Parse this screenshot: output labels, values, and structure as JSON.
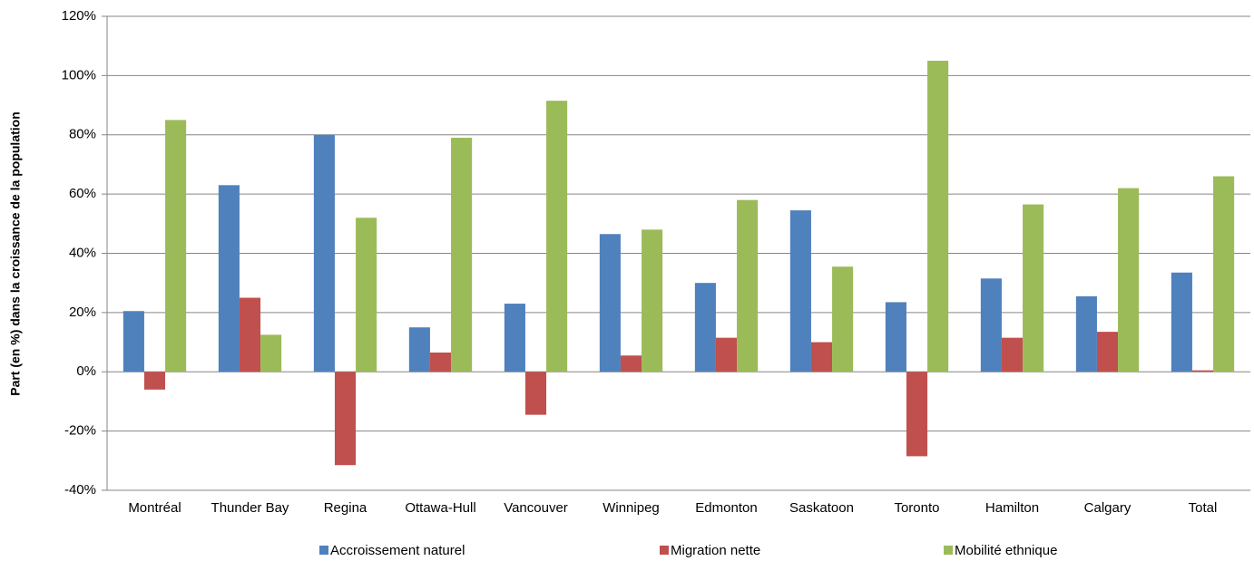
{
  "chart_data": {
    "type": "bar",
    "y_label": "Part (en %) dans la croissance de la population",
    "categories": [
      "Montréal",
      "Thunder Bay",
      "Regina",
      "Ottawa-Hull",
      "Vancouver",
      "Winnipeg",
      "Edmonton",
      "Saskatoon",
      "Toronto",
      "Hamilton",
      "Calgary",
      "Total"
    ],
    "series": [
      {
        "name": "Accroissement naturel",
        "color": "#4f81bd",
        "values": [
          20.5,
          63,
          80,
          15,
          23,
          46.5,
          30,
          54.5,
          23.5,
          31.5,
          25.5,
          33.5
        ]
      },
      {
        "name": "Migration nette",
        "color": "#c0504d",
        "values": [
          -6,
          25,
          -31.5,
          6.5,
          -14.5,
          5.5,
          11.5,
          10,
          -28.5,
          11.5,
          13.5,
          0.5
        ]
      },
      {
        "name": "Mobilité ethnique",
        "color": "#9bbb59",
        "values": [
          85,
          12.5,
          52,
          79,
          91.5,
          48,
          58,
          35.5,
          105,
          56.5,
          62,
          66
        ]
      }
    ],
    "ylim": [
      -40,
      120
    ],
    "yticks": [
      {
        "value": -40,
        "label": "-40%"
      },
      {
        "value": -20,
        "label": "-20%"
      },
      {
        "value": 0,
        "label": "0%"
      },
      {
        "value": 20,
        "label": "20%"
      },
      {
        "value": 40,
        "label": "40%"
      },
      {
        "value": 60,
        "label": "60%"
      },
      {
        "value": 80,
        "label": "80%"
      },
      {
        "value": 100,
        "label": "100%"
      },
      {
        "value": 120,
        "label": "120%"
      }
    ],
    "grid": true,
    "legend": "bottom"
  }
}
